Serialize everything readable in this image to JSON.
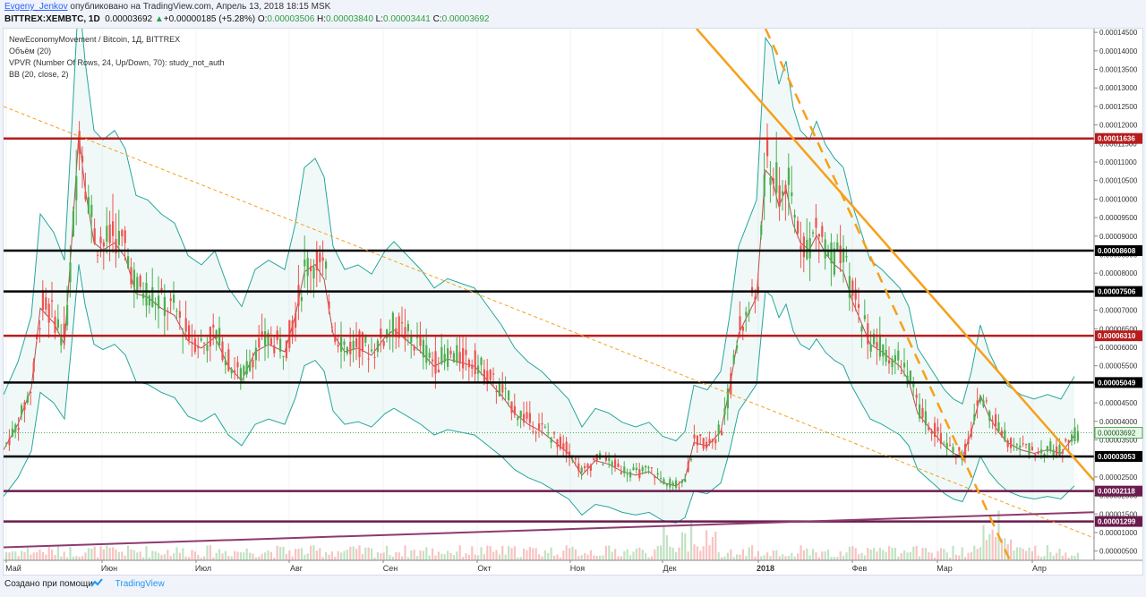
{
  "header": {
    "author": "Evgeny_Jenkov",
    "published_text": " опубликовано на TradingView.com, Апрель 13, 2018 18:15 MSK",
    "symbol_line": "BITTREX:XEMBTC, 1D",
    "last": "0.00003692",
    "change_arrow": "▲",
    "change": "+0.00000185 (+5.28%)",
    "o_label": "O:",
    "o": "0.00003506",
    "h_label": "H:",
    "h": "0.00003840",
    "l_label": "L:",
    "l": "0.00003441",
    "c_label": "C:",
    "c": "0.00003692"
  },
  "legend": {
    "title": "NewEconomyMovement / Bitcoin, 1Д, BITTREX",
    "volume": "Объём (20)",
    "vpvr": "VPVR (Number Of Rows, 24, Up/Down, 70): study_not_auth",
    "bb": "BB (20, close, 2)"
  },
  "footer": {
    "created_with": "Создано при помощи",
    "brand": "TradingView"
  },
  "colors": {
    "up": "#4caf50",
    "down": "#ef5350",
    "red_level": "#b71c1c",
    "black_level": "#000000",
    "purple_level": "#6a1b4d",
    "trend_orange": "#f6a01a",
    "bb_band": "#26a69a",
    "bb_basis": "#b2504f",
    "price_line": "#4caf50"
  },
  "chart_data": {
    "type": "candlestick",
    "symbol": "BITTREX:XEMBTC",
    "timeframe": "1D",
    "y_axis": {
      "min": 2.5e-06,
      "max": 0.000146,
      "ticks": [
        "0.00014500",
        "0.00014000",
        "0.00013500",
        "0.00013000",
        "0.00012500",
        "0.00012000",
        "0.00011500",
        "0.00011000",
        "0.00010500",
        "0.00010000",
        "0.00009500",
        "0.00009000",
        "0.00008500",
        "0.00008000",
        "0.00007500",
        "0.00007000",
        "0.00006500",
        "0.00006000",
        "0.00005500",
        "0.00005000",
        "0.00004500",
        "0.00004000",
        "0.00003500",
        "0.00003000",
        "0.00002500",
        "0.00002000",
        "0.00001500",
        "0.00001000",
        "0.00000500"
      ]
    },
    "x_axis": {
      "labels": [
        "Май",
        "Июн",
        "Июл",
        "Авг",
        "Сен",
        "Окт",
        "Ноя",
        "Дек",
        "2018",
        "Фев",
        "Мар",
        "Апр"
      ]
    },
    "horizontal_levels": [
      {
        "value": 0.00011636,
        "label": "0.00011636",
        "style": "red"
      },
      {
        "value": 8.608e-05,
        "label": "0.00008608",
        "style": "black"
      },
      {
        "value": 7.506e-05,
        "label": "0.00007506",
        "style": "black"
      },
      {
        "value": 6.31e-05,
        "label": "0.00006310",
        "style": "red"
      },
      {
        "value": 5.049e-05,
        "label": "0.00005049",
        "style": "black"
      },
      {
        "value": 3.053e-05,
        "label": "0.00003053",
        "style": "black"
      },
      {
        "value": 2.118e-05,
        "label": "0.00002118",
        "style": "purple"
      },
      {
        "value": 1.299e-05,
        "label": "0.00001299",
        "style": "purple"
      }
    ],
    "current_price": {
      "value": 3.692e-05,
      "label": "0.00003692"
    },
    "series": [
      {
        "name": "price",
        "x": [
          "Май",
          "Июн",
          "Июл",
          "Авг",
          "Сен",
          "Окт",
          "Ноя",
          "Дек",
          "2018",
          "Фев",
          "Мар",
          "Апр"
        ],
        "values": [
          3.5e-05,
          9e-05,
          6e-05,
          7.8e-05,
          6.2e-05,
          4.7e-05,
          2.6e-05,
          3e-05,
          0.00011,
          8e-05,
          3.5e-05,
          3.6e-05
        ]
      }
    ]
  }
}
